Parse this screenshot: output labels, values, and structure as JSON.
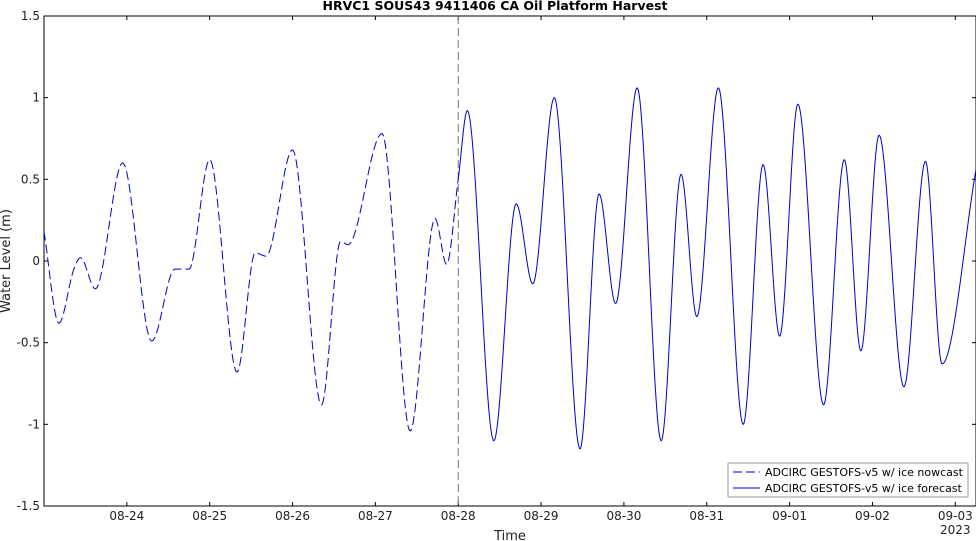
{
  "chart_data": {
    "type": "line",
    "title": "HRVC1 SOUS43 9411406 CA Oil Platform Harvest",
    "xlabel": "Time",
    "ylabel": "Water Level (m)",
    "x_unit": "days of 2023-08",
    "x_range": [
      23.0,
      34.25
    ],
    "ylim": [
      -1.5,
      1.5
    ],
    "yticks": [
      -1.5,
      -1,
      -0.5,
      0,
      0.5,
      1,
      1.5
    ],
    "ytick_labels": [
      "-1.5",
      "-1",
      "-0.5",
      "0",
      "0.5",
      "1",
      "1.5"
    ],
    "xticks": [
      24,
      25,
      26,
      27,
      28,
      29,
      30,
      31,
      32,
      33,
      34
    ],
    "xtick_labels": [
      "08-24",
      "08-25",
      "08-26",
      "08-27",
      "08-28",
      "08-29",
      "08-30",
      "08-31",
      "09-01",
      "09-02",
      "09-03"
    ],
    "xtick_sublabel": "2023",
    "nowcast_end": 28.0,
    "grid": false,
    "legend_position": "lower-right",
    "series": [
      {
        "name": "ADCIRC GESTOFS-v5 w/ ice nowcast",
        "color": "#0000cc",
        "style": "dashed",
        "points": [
          [
            23.0,
            0.18
          ],
          [
            23.18,
            -0.38
          ],
          [
            23.36,
            -0.05
          ],
          [
            23.44,
            0.02
          ],
          [
            23.62,
            -0.17
          ],
          [
            23.95,
            0.6
          ],
          [
            24.3,
            -0.49
          ],
          [
            24.58,
            -0.05
          ],
          [
            24.75,
            -0.05
          ],
          [
            25.0,
            0.62
          ],
          [
            25.33,
            -0.68
          ],
          [
            25.55,
            0.05
          ],
          [
            25.68,
            0.03
          ],
          [
            26.0,
            0.68
          ],
          [
            26.35,
            -0.88
          ],
          [
            26.58,
            0.12
          ],
          [
            26.67,
            0.1
          ],
          [
            27.08,
            0.78
          ],
          [
            27.42,
            -1.04
          ],
          [
            27.72,
            0.26
          ],
          [
            27.86,
            -0.02
          ],
          [
            28.0,
            0.5
          ]
        ]
      },
      {
        "name": "ADCIRC GESTOFS-v5 w/ ice forecast",
        "color": "#0000cc",
        "style": "solid",
        "points": [
          [
            28.0,
            0.5
          ],
          [
            28.11,
            0.92
          ],
          [
            28.43,
            -1.1
          ],
          [
            28.7,
            0.35
          ],
          [
            28.9,
            -0.14
          ],
          [
            29.16,
            1.0
          ],
          [
            29.47,
            -1.15
          ],
          [
            29.7,
            0.41
          ],
          [
            29.9,
            -0.26
          ],
          [
            30.16,
            1.06
          ],
          [
            30.45,
            -1.1
          ],
          [
            30.69,
            0.53
          ],
          [
            30.88,
            -0.34
          ],
          [
            31.14,
            1.06
          ],
          [
            31.44,
            -1.0
          ],
          [
            31.68,
            0.59
          ],
          [
            31.88,
            -0.46
          ],
          [
            32.1,
            0.96
          ],
          [
            32.41,
            -0.88
          ],
          [
            32.66,
            0.62
          ],
          [
            32.86,
            -0.55
          ],
          [
            33.08,
            0.77
          ],
          [
            33.38,
            -0.77
          ],
          [
            33.64,
            0.61
          ],
          [
            33.84,
            -0.63
          ],
          [
            34.25,
            0.56
          ]
        ]
      }
    ]
  }
}
